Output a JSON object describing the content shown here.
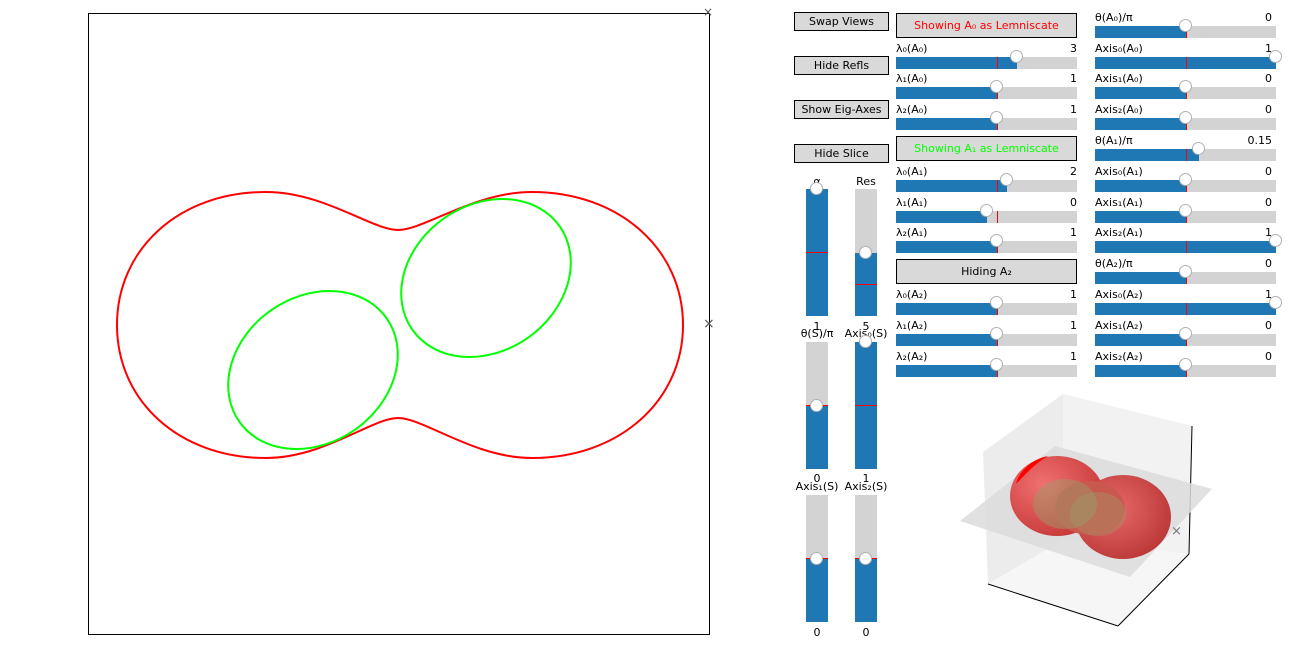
{
  "colors": {
    "red": "#ff0000",
    "green": "#00ff00",
    "blue": "#1f77b4",
    "track": "#d3d3d3",
    "button": "#d9d9d9"
  },
  "buttons": {
    "swap_views": "Swap Views",
    "hide_refls": "Hide Refls",
    "show_eig_axes": "Show Eig-Axes",
    "hide_slice": "Hide Slice"
  },
  "vertical_sliders": [
    {
      "label": "α",
      "value": "1",
      "fraction": 1.0
    },
    {
      "label": "Res",
      "value": "5",
      "fraction": 0.5
    },
    {
      "label": "θ(S)/π",
      "value": "0",
      "fraction": 0.5
    },
    {
      "label": "Axis₀(S)",
      "value": "1",
      "fraction": 1.0
    },
    {
      "label": "Axis₁(S)",
      "value": "0",
      "fraction": 0.5
    },
    {
      "label": "Axis₂(S)",
      "value": "0",
      "fraction": 0.5
    }
  ],
  "middle_column": {
    "toggle_a0": {
      "label": "Showing A₀ as Lemniscate",
      "color": "#ff0000"
    },
    "toggle_a1": {
      "label": "Showing A₁ as Lemniscate",
      "color": "#00ff00"
    },
    "toggle_a2": {
      "label": "Hiding A₂",
      "color": "#000000"
    },
    "sliders": [
      {
        "label": "λ₀(A₀)",
        "value": "3",
        "fraction": 0.667
      },
      {
        "label": "λ₁(A₀)",
        "value": "1",
        "fraction": 0.556
      },
      {
        "label": "λ₂(A₀)",
        "value": "1",
        "fraction": 0.556
      },
      {
        "label": "λ₀(A₁)",
        "value": "2",
        "fraction": 0.611
      },
      {
        "label": "λ₁(A₁)",
        "value": "0",
        "fraction": 0.5
      },
      {
        "label": "λ₂(A₁)",
        "value": "1",
        "fraction": 0.556
      },
      {
        "label": "λ₀(A₂)",
        "value": "1",
        "fraction": 0.556
      },
      {
        "label": "λ₁(A₂)",
        "value": "1",
        "fraction": 0.556
      },
      {
        "label": "λ₂(A₂)",
        "value": "1",
        "fraction": 0.556
      }
    ]
  },
  "right_column": {
    "sliders": [
      {
        "label": "θ(A₀)/π",
        "value": "0",
        "fraction": 0.5
      },
      {
        "label": "Axis₀(A₀)",
        "value": "1",
        "fraction": 1.0
      },
      {
        "label": "Axis₁(A₀)",
        "value": "0",
        "fraction": 0.5
      },
      {
        "label": "Axis₂(A₀)",
        "value": "0",
        "fraction": 0.5
      },
      {
        "label": "θ(A₁)/π",
        "value": "0.15",
        "fraction": 0.575
      },
      {
        "label": "Axis₀(A₁)",
        "value": "0",
        "fraction": 0.5
      },
      {
        "label": "Axis₁(A₁)",
        "value": "0",
        "fraction": 0.5
      },
      {
        "label": "Axis₂(A₁)",
        "value": "1",
        "fraction": 1.0
      },
      {
        "label": "θ(A₂)/π",
        "value": "0",
        "fraction": 0.5
      },
      {
        "label": "Axis₀(A₂)",
        "value": "1",
        "fraction": 1.0
      },
      {
        "label": "Axis₁(A₂)",
        "value": "0",
        "fraction": 0.5
      },
      {
        "label": "Axis₂(A₂)",
        "value": "0",
        "fraction": 0.5
      }
    ]
  },
  "plot": {
    "axis_marker": "×"
  }
}
